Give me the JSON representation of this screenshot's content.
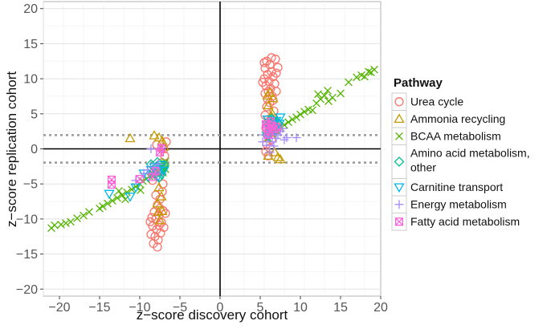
{
  "chart_data": {
    "type": "scatter",
    "xlabel": "z−score discovery cohort",
    "ylabel": "z−score replication cohort",
    "xlim": [
      -22,
      20
    ],
    "ylim": [
      -21,
      21
    ],
    "xticks": [
      -20,
      -15,
      -10,
      -5,
      0,
      5,
      10,
      15,
      20
    ],
    "xtick_labels": [
      "−20",
      "−15",
      "−10",
      "−5",
      "0",
      "5",
      "10",
      "15",
      "20"
    ],
    "yticks": [
      -20,
      -15,
      -10,
      -5,
      0,
      5,
      10,
      15,
      20
    ],
    "ytick_labels": [
      "−20",
      "−15",
      "−10",
      "−5",
      "0",
      "5",
      "10",
      "15",
      "20"
    ],
    "grid": true,
    "reference_lines": {
      "solid_x": 0,
      "solid_y": 0,
      "dotted_y": [
        1.96,
        -1.96
      ]
    },
    "legend": {
      "title": "Pathway",
      "placement": "right"
    },
    "series": [
      {
        "name": "Urea cycle",
        "label_lines": [
          "Urea cycle"
        ],
        "marker": "circle",
        "color": "#F8766D",
        "points": [
          [
            5.8,
            12.5
          ],
          [
            6.2,
            12.0
          ],
          [
            5.6,
            11.5
          ],
          [
            6.4,
            11.0
          ],
          [
            5.9,
            10.6
          ],
          [
            6.6,
            10.3
          ],
          [
            5.5,
            10.0
          ],
          [
            6.1,
            9.6
          ],
          [
            6.8,
            9.3
          ],
          [
            5.7,
            9.0
          ],
          [
            6.3,
            8.6
          ],
          [
            6.0,
            8.2
          ],
          [
            5.6,
            7.9
          ],
          [
            6.5,
            7.5
          ],
          [
            5.9,
            7.1
          ],
          [
            6.2,
            6.6
          ],
          [
            5.8,
            6.0
          ],
          [
            6.7,
            5.4
          ],
          [
            5.6,
            4.8
          ],
          [
            6.0,
            4.2
          ],
          [
            6.3,
            3.6
          ],
          [
            5.7,
            3.0
          ],
          [
            6.1,
            2.4
          ],
          [
            5.9,
            1.9
          ],
          [
            6.4,
            1.3
          ],
          [
            5.8,
            0.7
          ],
          [
            6.2,
            0.1
          ],
          [
            5.7,
            -0.4
          ],
          [
            6.0,
            -1.0
          ],
          [
            6.5,
            3.3
          ],
          [
            7.0,
            10.8
          ],
          [
            6.9,
            12.8
          ],
          [
            6.4,
            13.0
          ],
          [
            7.2,
            11.6
          ],
          [
            5.5,
            12.3
          ],
          [
            5.3,
            9.5
          ],
          [
            7.0,
            8.2
          ],
          [
            6.6,
            6.9
          ],
          [
            7.1,
            2.7
          ],
          [
            -7.8,
            -8.0
          ],
          [
            -7.5,
            -8.5
          ],
          [
            -8.2,
            -9.0
          ],
          [
            -7.6,
            -9.5
          ],
          [
            -8.0,
            -10.0
          ],
          [
            -7.3,
            -10.5
          ],
          [
            -8.4,
            -11.0
          ],
          [
            -7.9,
            -11.5
          ],
          [
            -7.4,
            -12.0
          ],
          [
            -8.1,
            -12.5
          ],
          [
            -7.7,
            -13.0
          ],
          [
            -8.3,
            -13.5
          ],
          [
            -7.5,
            -7.2
          ],
          [
            -8.0,
            -6.6
          ],
          [
            -7.2,
            -6.1
          ],
          [
            -8.5,
            -9.8
          ],
          [
            -7.0,
            -11.2
          ],
          [
            -8.6,
            -12.2
          ],
          [
            -7.8,
            -14.0
          ],
          [
            -7.1,
            -8.8
          ],
          [
            -7.6,
            -10.9
          ],
          [
            -8.7,
            -10.4
          ],
          [
            -6.8,
            -9.2
          ],
          [
            -6.7,
            1.0
          ],
          [
            -7.0,
            0.0
          ],
          [
            -6.9,
            -1.0
          ],
          [
            -7.3,
            -2.0
          ],
          [
            -7.2,
            -3.0
          ],
          [
            -7.6,
            -4.0
          ],
          [
            -7.1,
            -5.0
          ],
          [
            -8.4,
            -4.5
          ],
          [
            -7.9,
            0.6
          ]
        ]
      },
      {
        "name": "Ammonia recycling",
        "label_lines": [
          "Ammonia recycling"
        ],
        "marker": "triangle",
        "color": "#C49A00",
        "points": [
          [
            -11.2,
            1.5
          ],
          [
            -8.2,
            1.9
          ],
          [
            -7.6,
            1.6
          ],
          [
            -7.2,
            1.1
          ],
          [
            -7.0,
            0.3
          ],
          [
            -7.6,
            -5.5
          ],
          [
            -7.3,
            -6.8
          ],
          [
            -7.8,
            -7.8
          ],
          [
            -7.2,
            -8.9
          ],
          [
            -7.5,
            -10.2
          ],
          [
            -7.7,
            -9.0
          ],
          [
            6.5,
            5.0
          ],
          [
            6.0,
            6.2
          ],
          [
            6.6,
            7.2
          ],
          [
            6.2,
            8.0
          ],
          [
            5.9,
            7.6
          ],
          [
            6.4,
            4.6
          ],
          [
            7.2,
            -1.2
          ],
          [
            7.5,
            -1.5
          ],
          [
            6.0,
            -1.0
          ],
          [
            6.8,
            -0.5
          ],
          [
            7.0,
            3.8
          ],
          [
            6.3,
            3.0
          ]
        ]
      },
      {
        "name": "BCAA metabolism",
        "label_lines": [
          "BCAA metabolism"
        ],
        "marker": "x",
        "color": "#53B400",
        "points": [
          [
            -21.0,
            -11.3
          ],
          [
            -20.6,
            -10.9
          ],
          [
            -19.8,
            -10.8
          ],
          [
            -19.2,
            -10.6
          ],
          [
            -18.6,
            -10.4
          ],
          [
            -17.8,
            -9.9
          ],
          [
            -17.0,
            -9.5
          ],
          [
            -16.3,
            -9.0
          ],
          [
            -15.0,
            -8.5
          ],
          [
            -14.6,
            -8.2
          ],
          [
            -14.0,
            -7.8
          ],
          [
            -13.4,
            -7.4
          ],
          [
            -12.8,
            -7.0
          ],
          [
            -12.2,
            -6.6
          ],
          [
            -11.6,
            -6.2
          ],
          [
            -11.0,
            -5.8
          ],
          [
            -10.5,
            -5.4
          ],
          [
            -10.0,
            -5.0
          ],
          [
            -9.6,
            -4.6
          ],
          [
            -9.2,
            -4.3
          ],
          [
            -8.8,
            -3.9
          ],
          [
            -8.4,
            -3.5
          ],
          [
            -8.0,
            -3.1
          ],
          [
            -7.6,
            -2.8
          ],
          [
            -7.2,
            -2.5
          ],
          [
            -6.9,
            -2.1
          ],
          [
            -6.8,
            -1.8
          ],
          [
            -7.1,
            -3.4
          ],
          [
            -6.8,
            -2.9
          ],
          [
            -12.6,
            -6.0
          ],
          [
            -11.8,
            -7.2
          ],
          [
            -9.9,
            -5.9
          ],
          [
            6.0,
            1.5
          ],
          [
            6.5,
            2.2
          ],
          [
            7.0,
            2.7
          ],
          [
            7.5,
            3.1
          ],
          [
            8.0,
            3.4
          ],
          [
            8.5,
            3.8
          ],
          [
            9.0,
            4.2
          ],
          [
            9.5,
            4.5
          ],
          [
            10.0,
            4.9
          ],
          [
            10.5,
            5.3
          ],
          [
            11.0,
            5.6
          ],
          [
            12.0,
            6.5
          ],
          [
            12.5,
            7.1
          ],
          [
            13.0,
            7.6
          ],
          [
            13.4,
            8.3
          ],
          [
            14.0,
            7.3
          ],
          [
            15.0,
            7.9
          ],
          [
            16.0,
            9.5
          ],
          [
            17.0,
            10.2
          ],
          [
            17.6,
            10.5
          ],
          [
            18.0,
            10.3
          ],
          [
            18.8,
            10.9
          ],
          [
            19.2,
            11.3
          ],
          [
            18.5,
            11.0
          ],
          [
            13.5,
            6.8
          ],
          [
            11.5,
            5.5
          ],
          [
            12.2,
            7.8
          ]
        ]
      },
      {
        "name": "Amino acid metabolism, other",
        "label_lines": [
          "Amino acid metabolism,",
          " other"
        ],
        "marker": "diamond",
        "color": "#00C094",
        "points": [
          [
            -8.6,
            -2.2
          ],
          [
            -8.0,
            -2.6
          ],
          [
            -7.6,
            -3.0
          ],
          [
            -7.3,
            -3.6
          ],
          [
            -7.0,
            -2.3
          ],
          [
            -8.3,
            -3.3
          ],
          [
            -7.8,
            -1.9
          ],
          [
            -7.1,
            -2.8
          ],
          [
            -7.6,
            -4.1
          ],
          [
            -8.1,
            -3.7
          ],
          [
            5.8,
            2.4
          ],
          [
            6.2,
            2.8
          ],
          [
            6.6,
            3.1
          ],
          [
            6.1,
            3.4
          ],
          [
            5.9,
            3.8
          ],
          [
            6.4,
            4.3
          ],
          [
            6.8,
            2.6
          ],
          [
            7.1,
            3.7
          ],
          [
            6.7,
            4.0
          ],
          [
            5.8,
            2.0
          ]
        ]
      },
      {
        "name": "Carnitine transport",
        "label_lines": [
          "Carnitine transport"
        ],
        "marker": "triangle-down",
        "color": "#00B6EB",
        "points": [
          [
            -13.8,
            -6.4
          ],
          [
            -11.2,
            -6.8
          ],
          [
            -10.5,
            -5.5
          ],
          [
            -9.5,
            -3.5
          ],
          [
            -9.0,
            -4.0
          ],
          [
            -8.6,
            -3.0
          ],
          [
            -8.2,
            -2.6
          ],
          [
            -7.7,
            -3.9
          ],
          [
            -7.3,
            -2.3
          ],
          [
            -7.0,
            -3.1
          ],
          [
            6.0,
            3.0
          ],
          [
            6.5,
            3.5
          ],
          [
            7.0,
            4.0
          ],
          [
            7.5,
            4.5
          ],
          [
            6.4,
            2.4
          ],
          [
            5.9,
            4.2
          ],
          [
            6.8,
            2.7
          ],
          [
            7.4,
            3.6
          ],
          [
            6.1,
            1.8
          ]
        ]
      },
      {
        "name": "Energy metabolism",
        "label_lines": [
          "Energy metabolism"
        ],
        "marker": "plus",
        "color": "#A58AFF",
        "points": [
          [
            -10.5,
            -4.5
          ],
          [
            -9.5,
            -3.5
          ],
          [
            -9.0,
            -3.0
          ],
          [
            -8.2,
            -2.6
          ],
          [
            -7.7,
            -2.2
          ],
          [
            -8.6,
            0.0
          ],
          [
            -7.2,
            0.1
          ],
          [
            5.5,
            2.0
          ],
          [
            6.0,
            1.6
          ],
          [
            6.5,
            1.0
          ],
          [
            7.0,
            1.5
          ],
          [
            7.5,
            2.5
          ],
          [
            7.8,
            2.9
          ],
          [
            8.3,
            1.6
          ],
          [
            9.5,
            1.6
          ],
          [
            5.3,
            1.0
          ],
          [
            6.7,
            0.4
          ],
          [
            8.0,
            1.3
          ],
          [
            5.8,
            0.5
          ],
          [
            7.2,
            2.0
          ],
          [
            6.2,
            -0.5
          ]
        ]
      },
      {
        "name": "Fatty acid metabolism",
        "label_lines": [
          "Fatty acid metabolism"
        ],
        "marker": "boxx",
        "color": "#FB61D7",
        "points": [
          [
            -13.5,
            -4.4
          ],
          [
            -13.5,
            -5.1
          ],
          [
            -10.0,
            -4.3
          ],
          [
            -8.4,
            -4.0
          ],
          [
            -8.0,
            -3.2
          ],
          [
            -7.5,
            -0.5
          ],
          [
            -7.3,
            0.1
          ],
          [
            5.8,
            3.0
          ],
          [
            6.2,
            2.5
          ],
          [
            6.5,
            3.3
          ],
          [
            6.0,
            2.0
          ],
          [
            6.7,
            2.8
          ],
          [
            5.7,
            3.5
          ],
          [
            6.3,
            3.9
          ],
          [
            7.0,
            3.1
          ]
        ]
      }
    ]
  }
}
